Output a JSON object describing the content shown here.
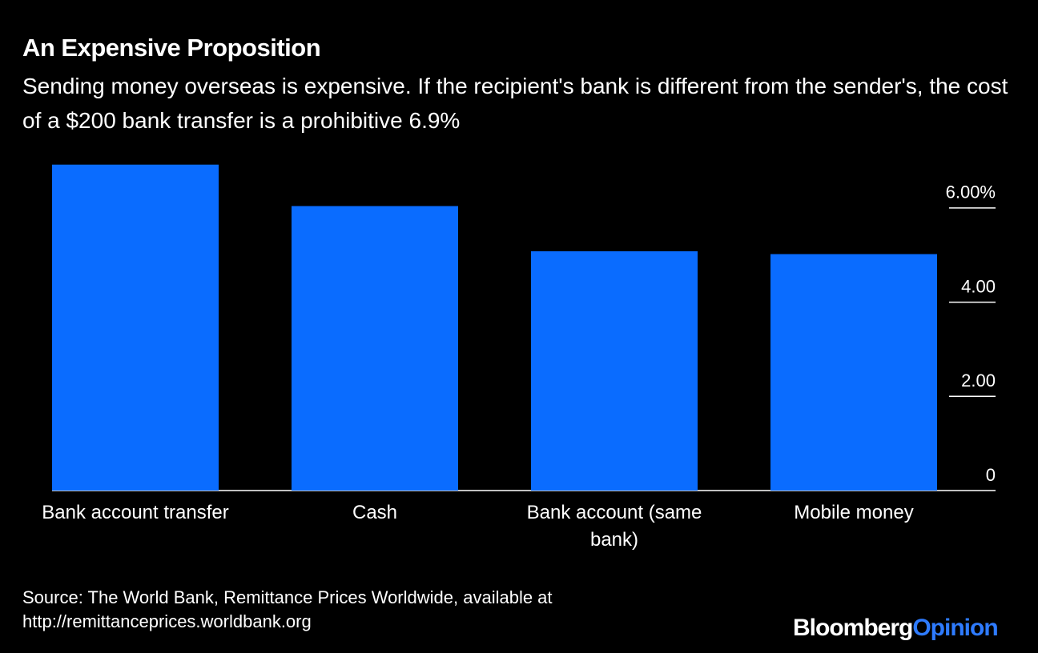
{
  "chart_data": {
    "type": "bar",
    "title": "An Expensive Proposition",
    "subtitle": "Sending money overseas is expensive. If the recipient's bank is different from the sender's, the cost of a $200 bank transfer is a prohibitive 6.9%",
    "categories": [
      "Bank account transfer",
      "Cash",
      "Bank account (same bank)",
      "Mobile money"
    ],
    "values": [
      6.92,
      6.04,
      5.08,
      5.02
    ],
    "color": "#0a6cff",
    "ylim": [
      0,
      7
    ],
    "yticks": [
      0,
      {
        "value": 2,
        "label": "2.00"
      },
      {
        "value": 4,
        "label": "4.00"
      },
      {
        "value": 6,
        "label": "6.00%"
      }
    ],
    "grid": true,
    "source": "Source: The World Bank, Remittance Prices Worldwide, available at http://remittanceprices.worldbank.org",
    "brand": {
      "name": "Bloomberg",
      "section": "Opinion"
    }
  }
}
